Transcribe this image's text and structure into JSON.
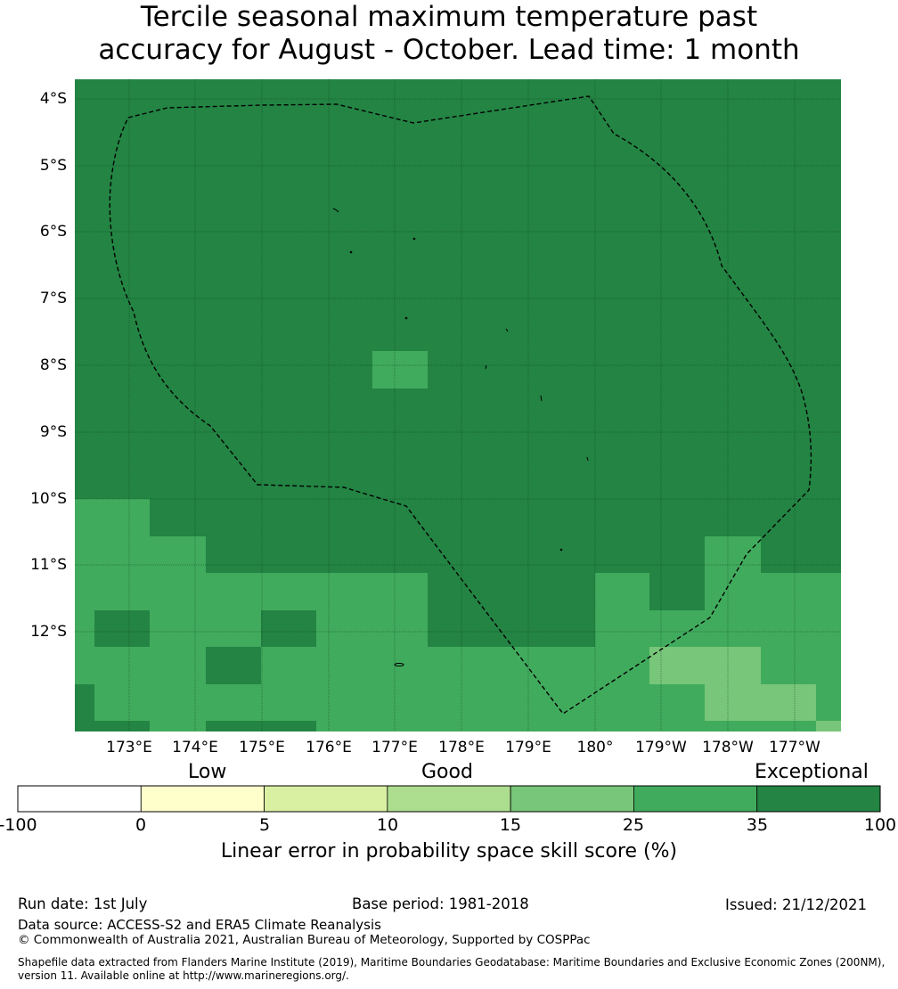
{
  "title": {
    "line1": "Tercile seasonal maximum temperature past",
    "line2": "accuracy for August - October. Lead time: 1 month"
  },
  "map": {
    "lat_labels": [
      "4°S",
      "5°S",
      "6°S",
      "7°S",
      "8°S",
      "9°S",
      "10°S",
      "11°S",
      "12°S"
    ],
    "lon_labels": [
      "173°E",
      "174°E",
      "175°E",
      "176°E",
      "177°E",
      "178°E",
      "179°E",
      "180°",
      "179°W",
      "178°W",
      "177°W"
    ],
    "colors": {
      "exceptional": "#238443",
      "very_good": "#41ab5d",
      "good": "#78c679",
      "boundary": "#000000"
    },
    "grid": {
      "lon_west": 172.2,
      "lon_east": 183.7,
      "lat_north": -3.75,
      "lat_south": -13.5,
      "dark_region": "most of the grid north of 10°S, plus the central zone south of 10°S",
      "medium_cells_lonlat": [
        [
          172.2,
          -10.0,
          173.3,
          -13.5
        ],
        [
          173.3,
          -10.6,
          174.0,
          -13.5
        ],
        [
          174.0,
          -11.1,
          177.5,
          -13.5
        ],
        [
          176.7,
          -7.8,
          177.5,
          -8.35
        ],
        [
          177.5,
          -12.2,
          180.0,
          -13.5
        ],
        [
          180.0,
          -11.1,
          182.0,
          -13.5
        ],
        [
          182.0,
          -11.1,
          183.7,
          -13.5
        ],
        [
          182.0,
          -10.6,
          182.8,
          -11.1
        ]
      ],
      "light_cells_lonlat": [
        [
          180.8,
          -12.25,
          182.5,
          -12.8
        ],
        [
          181.6,
          -12.8,
          183.3,
          -13.35
        ],
        [
          183.3,
          -13.35,
          183.7,
          -13.5
        ]
      ]
    }
  },
  "colorbar": {
    "categories": [
      "Low",
      "Good",
      "Exceptional"
    ],
    "ticks": [
      "-100",
      "0",
      "5",
      "10",
      "15",
      "25",
      "35",
      "100"
    ],
    "bins": [
      {
        "from": -100,
        "to": 0,
        "color": "#ffffff"
      },
      {
        "from": 0,
        "to": 5,
        "color": "#ffffcc"
      },
      {
        "from": 5,
        "to": 10,
        "color": "#d9f0a3"
      },
      {
        "from": 10,
        "to": 15,
        "color": "#addd8e"
      },
      {
        "from": 15,
        "to": 25,
        "color": "#78c679"
      },
      {
        "from": 25,
        "to": 35,
        "color": "#41ab5d"
      },
      {
        "from": 35,
        "to": 100,
        "color": "#238443"
      }
    ],
    "label": "Linear error in probability space skill score (%)"
  },
  "footer": {
    "run_date": "Run date: 1st July",
    "base_period": "Base period: 1981-2018",
    "issued": "Issued: 21/12/2021",
    "data_source": "Data source: ACCESS-S2 and ERA5 Climate Reanalysis",
    "copyright": "© Commonwealth of Australia 2021, Australian Bureau of Meteorology, Supported by COSPPac",
    "shapefile_line1": "Shapefile data extracted from Flanders Marine Institute (2019), Maritime Boundaries Geodatabase: Maritime Boundaries and Exclusive Economic Zones (200NM),",
    "shapefile_line2": "version 11. Available online at http://www.marineregions.org/."
  }
}
